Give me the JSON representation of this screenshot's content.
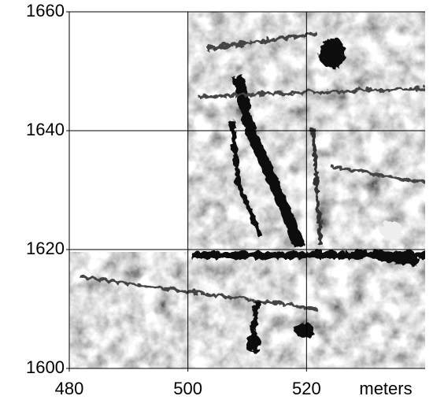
{
  "chart_data": {
    "type": "raster",
    "x_label": "meters",
    "xlim": [
      480,
      540
    ],
    "ylim": [
      1600,
      1660
    ],
    "xticks": [
      480,
      500,
      520
    ],
    "yticks": [
      1600,
      1620,
      1640,
      1660
    ],
    "grid": true
  }
}
